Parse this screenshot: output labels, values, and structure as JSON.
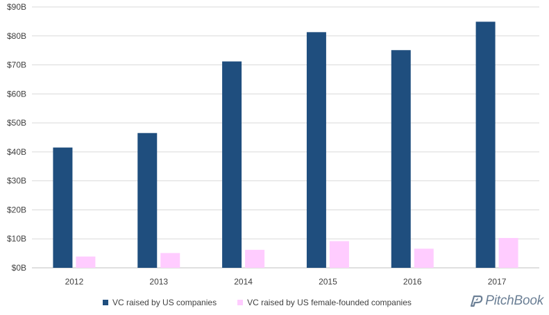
{
  "chart_data": {
    "type": "bar",
    "categories": [
      "2012",
      "2013",
      "2014",
      "2015",
      "2016",
      "2017"
    ],
    "series": [
      {
        "name": "VC raised by US companies",
        "values": [
          41.5,
          46.5,
          71.2,
          81.3,
          75.1,
          84.9
        ],
        "color": "#1f4e7e"
      },
      {
        "name": "VC raised by US female-founded companies",
        "values": [
          3.9,
          5.1,
          6.2,
          9.2,
          6.6,
          10.3
        ],
        "color": "#ffccff"
      }
    ],
    "ylim": [
      0,
      90
    ],
    "yticks": [
      "$0B",
      "$10B",
      "$20B",
      "$30B",
      "$40B",
      "$50B",
      "$60B",
      "$70B",
      "$80B",
      "$90B"
    ],
    "grid": true,
    "legend": "bottom"
  },
  "brand": {
    "name": "PitchBook",
    "icon": "pitchbook-logo-icon"
  }
}
